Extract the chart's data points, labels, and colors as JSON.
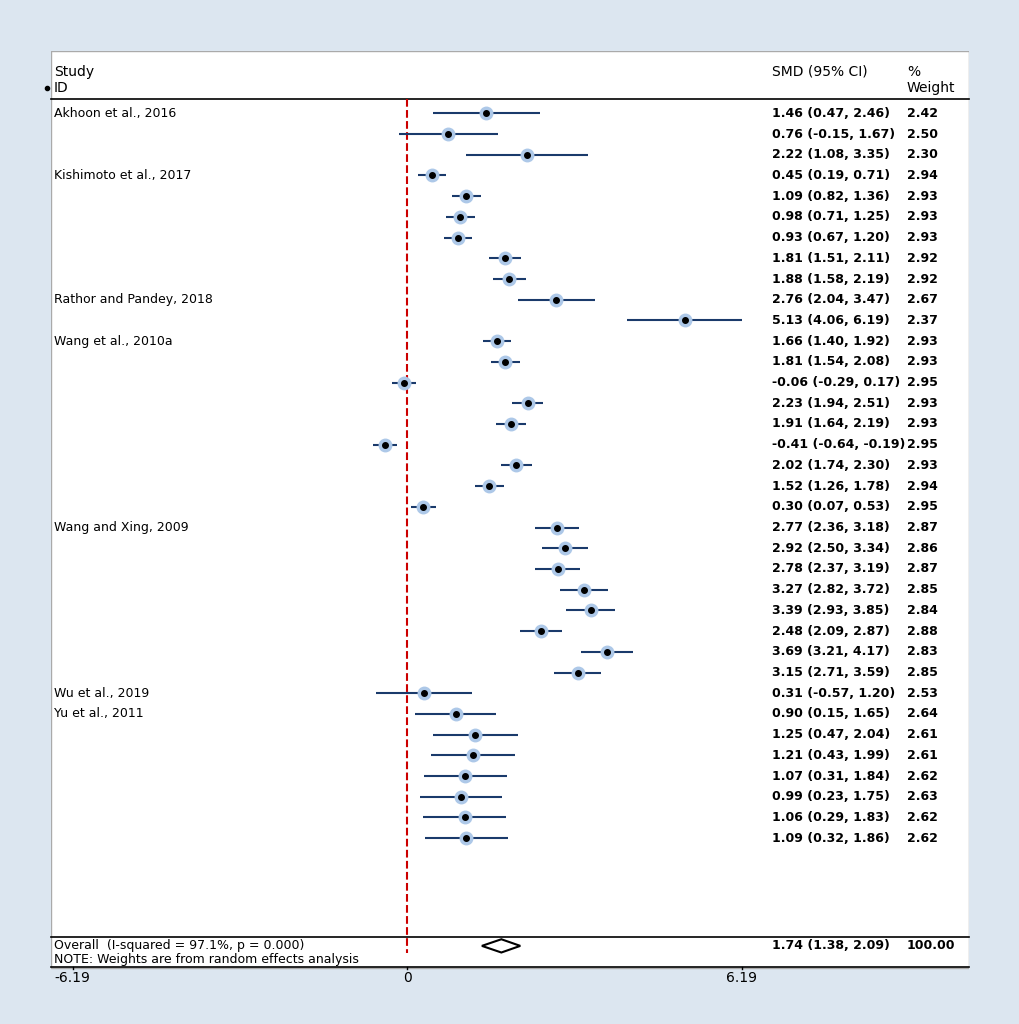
{
  "studies": [
    {
      "label": "Akhoon et al., 2016",
      "smd": 1.46,
      "ci_lo": 0.47,
      "ci_hi": 2.46,
      "weight": "2.42",
      "ci_str": "1.46 (0.47, 2.46)",
      "show_label": true
    },
    {
      "label": "",
      "smd": 0.76,
      "ci_lo": -0.15,
      "ci_hi": 1.67,
      "weight": "2.50",
      "ci_str": "0.76 (-0.15, 1.67)",
      "show_label": false
    },
    {
      "label": "",
      "smd": 2.22,
      "ci_lo": 1.08,
      "ci_hi": 3.35,
      "weight": "2.30",
      "ci_str": "2.22 (1.08, 3.35)",
      "show_label": false
    },
    {
      "label": "Kishimoto et al., 2017",
      "smd": 0.45,
      "ci_lo": 0.19,
      "ci_hi": 0.71,
      "weight": "2.94",
      "ci_str": "0.45 (0.19, 0.71)",
      "show_label": true
    },
    {
      "label": "",
      "smd": 1.09,
      "ci_lo": 0.82,
      "ci_hi": 1.36,
      "weight": "2.93",
      "ci_str": "1.09 (0.82, 1.36)",
      "show_label": false
    },
    {
      "label": "",
      "smd": 0.98,
      "ci_lo": 0.71,
      "ci_hi": 1.25,
      "weight": "2.93",
      "ci_str": "0.98 (0.71, 1.25)",
      "show_label": false
    },
    {
      "label": "",
      "smd": 0.93,
      "ci_lo": 0.67,
      "ci_hi": 1.2,
      "weight": "2.93",
      "ci_str": "0.93 (0.67, 1.20)",
      "show_label": false
    },
    {
      "label": "",
      "smd": 1.81,
      "ci_lo": 1.51,
      "ci_hi": 2.11,
      "weight": "2.92",
      "ci_str": "1.81 (1.51, 2.11)",
      "show_label": false
    },
    {
      "label": "",
      "smd": 1.88,
      "ci_lo": 1.58,
      "ci_hi": 2.19,
      "weight": "2.92",
      "ci_str": "1.88 (1.58, 2.19)",
      "show_label": false
    },
    {
      "label": "Rathor and Pandey, 2018",
      "smd": 2.76,
      "ci_lo": 2.04,
      "ci_hi": 3.47,
      "weight": "2.67",
      "ci_str": "2.76 (2.04, 3.47)",
      "show_label": true
    },
    {
      "label": "",
      "smd": 5.13,
      "ci_lo": 4.06,
      "ci_hi": 6.19,
      "weight": "2.37",
      "ci_str": "5.13 (4.06, 6.19)",
      "show_label": false
    },
    {
      "label": "Wang et al., 2010a",
      "smd": 1.66,
      "ci_lo": 1.4,
      "ci_hi": 1.92,
      "weight": "2.93",
      "ci_str": "1.66 (1.40, 1.92)",
      "show_label": true
    },
    {
      "label": "",
      "smd": 1.81,
      "ci_lo": 1.54,
      "ci_hi": 2.08,
      "weight": "2.93",
      "ci_str": "1.81 (1.54, 2.08)",
      "show_label": false
    },
    {
      "label": "",
      "smd": -0.06,
      "ci_lo": -0.29,
      "ci_hi": 0.17,
      "weight": "2.95",
      "ci_str": "-0.06 (-0.29, 0.17)",
      "show_label": false
    },
    {
      "label": "",
      "smd": 2.23,
      "ci_lo": 1.94,
      "ci_hi": 2.51,
      "weight": "2.93",
      "ci_str": "2.23 (1.94, 2.51)",
      "show_label": false
    },
    {
      "label": "",
      "smd": 1.91,
      "ci_lo": 1.64,
      "ci_hi": 2.19,
      "weight": "2.93",
      "ci_str": "1.91 (1.64, 2.19)",
      "show_label": false
    },
    {
      "label": "",
      "smd": -0.41,
      "ci_lo": -0.64,
      "ci_hi": -0.19,
      "weight": "2.95",
      "ci_str": "-0.41 (-0.64, -0.19)",
      "show_label": false
    },
    {
      "label": "",
      "smd": 2.02,
      "ci_lo": 1.74,
      "ci_hi": 2.3,
      "weight": "2.93",
      "ci_str": "2.02 (1.74, 2.30)",
      "show_label": false
    },
    {
      "label": "",
      "smd": 1.52,
      "ci_lo": 1.26,
      "ci_hi": 1.78,
      "weight": "2.94",
      "ci_str": "1.52 (1.26, 1.78)",
      "show_label": false
    },
    {
      "label": "",
      "smd": 0.3,
      "ci_lo": 0.07,
      "ci_hi": 0.53,
      "weight": "2.95",
      "ci_str": "0.30 (0.07, 0.53)",
      "show_label": false
    },
    {
      "label": "Wang and Xing, 2009",
      "smd": 2.77,
      "ci_lo": 2.36,
      "ci_hi": 3.18,
      "weight": "2.87",
      "ci_str": "2.77 (2.36, 3.18)",
      "show_label": true
    },
    {
      "label": "",
      "smd": 2.92,
      "ci_lo": 2.5,
      "ci_hi": 3.34,
      "weight": "2.86",
      "ci_str": "2.92 (2.50, 3.34)",
      "show_label": false
    },
    {
      "label": "",
      "smd": 2.78,
      "ci_lo": 2.37,
      "ci_hi": 3.19,
      "weight": "2.87",
      "ci_str": "2.78 (2.37, 3.19)",
      "show_label": false
    },
    {
      "label": "",
      "smd": 3.27,
      "ci_lo": 2.82,
      "ci_hi": 3.72,
      "weight": "2.85",
      "ci_str": "3.27 (2.82, 3.72)",
      "show_label": false
    },
    {
      "label": "",
      "smd": 3.39,
      "ci_lo": 2.93,
      "ci_hi": 3.85,
      "weight": "2.84",
      "ci_str": "3.39 (2.93, 3.85)",
      "show_label": false
    },
    {
      "label": "",
      "smd": 2.48,
      "ci_lo": 2.09,
      "ci_hi": 2.87,
      "weight": "2.88",
      "ci_str": "2.48 (2.09, 2.87)",
      "show_label": false
    },
    {
      "label": "",
      "smd": 3.69,
      "ci_lo": 3.21,
      "ci_hi": 4.17,
      "weight": "2.83",
      "ci_str": "3.69 (3.21, 4.17)",
      "show_label": false
    },
    {
      "label": "",
      "smd": 3.15,
      "ci_lo": 2.71,
      "ci_hi": 3.59,
      "weight": "2.85",
      "ci_str": "3.15 (2.71, 3.59)",
      "show_label": false
    },
    {
      "label": "Wu et al., 2019",
      "smd": 0.31,
      "ci_lo": -0.57,
      "ci_hi": 1.2,
      "weight": "2.53",
      "ci_str": "0.31 (-0.57, 1.20)",
      "show_label": true
    },
    {
      "label": "Yu et al., 2011",
      "smd": 0.9,
      "ci_lo": 0.15,
      "ci_hi": 1.65,
      "weight": "2.64",
      "ci_str": "0.90 (0.15, 1.65)",
      "show_label": true
    },
    {
      "label": "",
      "smd": 1.25,
      "ci_lo": 0.47,
      "ci_hi": 2.04,
      "weight": "2.61",
      "ci_str": "1.25 (0.47, 2.04)",
      "show_label": false
    },
    {
      "label": "",
      "smd": 1.21,
      "ci_lo": 0.43,
      "ci_hi": 1.99,
      "weight": "2.61",
      "ci_str": "1.21 (0.43, 1.99)",
      "show_label": false
    },
    {
      "label": "",
      "smd": 1.07,
      "ci_lo": 0.31,
      "ci_hi": 1.84,
      "weight": "2.62",
      "ci_str": "1.07 (0.31, 1.84)",
      "show_label": false
    },
    {
      "label": "",
      "smd": 0.99,
      "ci_lo": 0.23,
      "ci_hi": 1.75,
      "weight": "2.63",
      "ci_str": "0.99 (0.23, 1.75)",
      "show_label": false
    },
    {
      "label": "",
      "smd": 1.06,
      "ci_lo": 0.29,
      "ci_hi": 1.83,
      "weight": "2.62",
      "ci_str": "1.06 (0.29, 1.83)",
      "show_label": false
    },
    {
      "label": "",
      "smd": 1.09,
      "ci_lo": 0.32,
      "ci_hi": 1.86,
      "weight": "2.62",
      "ci_str": "1.09 (0.32, 1.86)",
      "show_label": false
    }
  ],
  "overall": {
    "smd": 1.74,
    "ci_lo": 1.38,
    "ci_hi": 2.09,
    "weight": "100.00",
    "ci_str": "1.74 (1.38, 2.09)",
    "label": "Overall  (I-squared = 97.1%, p = 0.000)"
  },
  "note": "NOTE: Weights are from random effects analysis",
  "x_min": -6.19,
  "x_max": 6.19,
  "x_ticks": [
    -6.19,
    0,
    6.19
  ],
  "plot_bg": "#dce6f0",
  "inner_bg": "#ffffff",
  "dot_color": "#000000",
  "ci_line_color": "#1a3a6b",
  "ci_fill_color": "#adc8e8",
  "dashed_line_color": "#cc0000",
  "diamond_color": "#000000"
}
